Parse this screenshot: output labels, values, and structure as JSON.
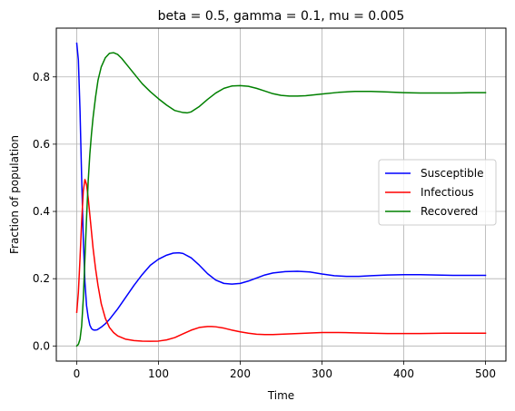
{
  "chart_data": {
    "type": "line",
    "title": "beta = 0.5, gamma = 0.1, mu = 0.005",
    "xlabel": "Time",
    "ylabel": "Fraction of population",
    "xlim": [
      -25,
      525
    ],
    "ylim": [
      -0.045,
      0.945
    ],
    "xticks": [
      0,
      100,
      200,
      300,
      400,
      500
    ],
    "xtick_labels": [
      "0",
      "100",
      "200",
      "300",
      "400",
      "500"
    ],
    "yticks": [
      0.0,
      0.2,
      0.4,
      0.6,
      0.8
    ],
    "ytick_labels": [
      "0.0",
      "0.2",
      "0.4",
      "0.6",
      "0.8"
    ],
    "grid": true,
    "legend_position": "center-right",
    "series": [
      {
        "name": "Susceptible",
        "color": "#0000ff",
        "points": [
          [
            0,
            0.9
          ],
          [
            2,
            0.85
          ],
          [
            4,
            0.7
          ],
          [
            6,
            0.5
          ],
          [
            8,
            0.32
          ],
          [
            10,
            0.19
          ],
          [
            12,
            0.12
          ],
          [
            14,
            0.085
          ],
          [
            16,
            0.062
          ],
          [
            18,
            0.052
          ],
          [
            20,
            0.048
          ],
          [
            22,
            0.047
          ],
          [
            25,
            0.048
          ],
          [
            30,
            0.056
          ],
          [
            35,
            0.066
          ],
          [
            40,
            0.079
          ],
          [
            50,
            0.11
          ],
          [
            60,
            0.145
          ],
          [
            70,
            0.18
          ],
          [
            80,
            0.212
          ],
          [
            90,
            0.24
          ],
          [
            100,
            0.258
          ],
          [
            110,
            0.27
          ],
          [
            118,
            0.276
          ],
          [
            125,
            0.277
          ],
          [
            130,
            0.275
          ],
          [
            140,
            0.262
          ],
          [
            150,
            0.24
          ],
          [
            160,
            0.215
          ],
          [
            170,
            0.196
          ],
          [
            180,
            0.186
          ],
          [
            190,
            0.184
          ],
          [
            200,
            0.186
          ],
          [
            210,
            0.193
          ],
          [
            220,
            0.202
          ],
          [
            230,
            0.211
          ],
          [
            240,
            0.217
          ],
          [
            255,
            0.221
          ],
          [
            270,
            0.222
          ],
          [
            285,
            0.22
          ],
          [
            300,
            0.214
          ],
          [
            315,
            0.209
          ],
          [
            330,
            0.207
          ],
          [
            345,
            0.207
          ],
          [
            360,
            0.209
          ],
          [
            380,
            0.211
          ],
          [
            400,
            0.212
          ],
          [
            420,
            0.212
          ],
          [
            440,
            0.211
          ],
          [
            460,
            0.21
          ],
          [
            480,
            0.21
          ],
          [
            500,
            0.21
          ]
        ]
      },
      {
        "name": "Infectious",
        "color": "#ff0000",
        "points": [
          [
            0,
            0.1
          ],
          [
            2,
            0.16
          ],
          [
            4,
            0.26
          ],
          [
            6,
            0.37
          ],
          [
            8,
            0.46
          ],
          [
            10,
            0.495
          ],
          [
            12,
            0.48
          ],
          [
            14,
            0.44
          ],
          [
            16,
            0.39
          ],
          [
            18,
            0.34
          ],
          [
            20,
            0.29
          ],
          [
            23,
            0.23
          ],
          [
            26,
            0.18
          ],
          [
            30,
            0.125
          ],
          [
            35,
            0.082
          ],
          [
            40,
            0.055
          ],
          [
            45,
            0.04
          ],
          [
            50,
            0.03
          ],
          [
            60,
            0.02
          ],
          [
            70,
            0.016
          ],
          [
            80,
            0.0145
          ],
          [
            90,
            0.014
          ],
          [
            100,
            0.0145
          ],
          [
            110,
            0.018
          ],
          [
            120,
            0.025
          ],
          [
            130,
            0.036
          ],
          [
            140,
            0.047
          ],
          [
            150,
            0.055
          ],
          [
            160,
            0.058
          ],
          [
            165,
            0.058
          ],
          [
            170,
            0.057
          ],
          [
            180,
            0.053
          ],
          [
            190,
            0.047
          ],
          [
            200,
            0.042
          ],
          [
            210,
            0.038
          ],
          [
            220,
            0.035
          ],
          [
            230,
            0.034
          ],
          [
            240,
            0.034
          ],
          [
            260,
            0.036
          ],
          [
            280,
            0.038
          ],
          [
            300,
            0.04
          ],
          [
            320,
            0.04
          ],
          [
            340,
            0.039
          ],
          [
            360,
            0.038
          ],
          [
            380,
            0.037
          ],
          [
            400,
            0.037
          ],
          [
            420,
            0.037
          ],
          [
            450,
            0.038
          ],
          [
            480,
            0.038
          ],
          [
            500,
            0.038
          ]
        ]
      },
      {
        "name": "Recovered",
        "color": "#008000",
        "points": [
          [
            0,
            0.0
          ],
          [
            2,
            0.005
          ],
          [
            4,
            0.02
          ],
          [
            6,
            0.06
          ],
          [
            8,
            0.14
          ],
          [
            10,
            0.26
          ],
          [
            12,
            0.38
          ],
          [
            14,
            0.49
          ],
          [
            16,
            0.57
          ],
          [
            18,
            0.63
          ],
          [
            20,
            0.68
          ],
          [
            23,
            0.74
          ],
          [
            26,
            0.79
          ],
          [
            30,
            0.83
          ],
          [
            35,
            0.857
          ],
          [
            40,
            0.87
          ],
          [
            45,
            0.872
          ],
          [
            50,
            0.867
          ],
          [
            55,
            0.855
          ],
          [
            60,
            0.84
          ],
          [
            70,
            0.81
          ],
          [
            80,
            0.78
          ],
          [
            90,
            0.756
          ],
          [
            100,
            0.735
          ],
          [
            110,
            0.716
          ],
          [
            120,
            0.7
          ],
          [
            130,
            0.694
          ],
          [
            135,
            0.693
          ],
          [
            140,
            0.696
          ],
          [
            150,
            0.712
          ],
          [
            160,
            0.733
          ],
          [
            170,
            0.752
          ],
          [
            180,
            0.766
          ],
          [
            190,
            0.773
          ],
          [
            200,
            0.774
          ],
          [
            210,
            0.772
          ],
          [
            220,
            0.766
          ],
          [
            230,
            0.758
          ],
          [
            240,
            0.75
          ],
          [
            250,
            0.745
          ],
          [
            260,
            0.743
          ],
          [
            270,
            0.743
          ],
          [
            280,
            0.744
          ],
          [
            300,
            0.749
          ],
          [
            320,
            0.754
          ],
          [
            340,
            0.757
          ],
          [
            360,
            0.757
          ],
          [
            380,
            0.755
          ],
          [
            400,
            0.753
          ],
          [
            420,
            0.752
          ],
          [
            440,
            0.752
          ],
          [
            460,
            0.752
          ],
          [
            480,
            0.753
          ],
          [
            500,
            0.753
          ]
        ]
      }
    ]
  }
}
